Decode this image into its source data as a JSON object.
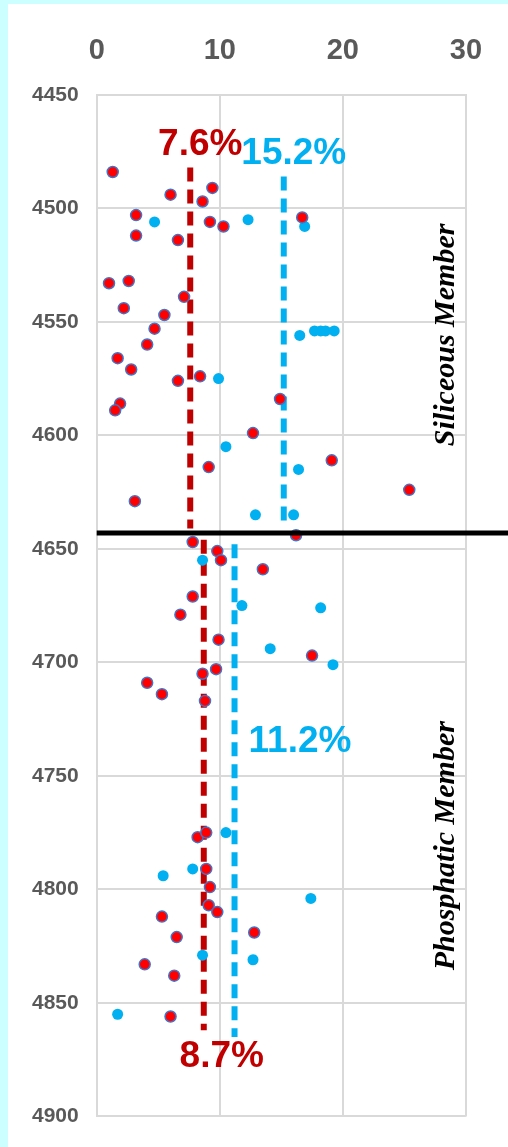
{
  "chart_data": {
    "type": "scatter",
    "xlim": [
      0,
      30
    ],
    "xticks": [
      0,
      10,
      20,
      30
    ],
    "ylim": [
      4900,
      4450
    ],
    "yticks": [
      4450,
      4500,
      4550,
      4600,
      4650,
      4700,
      4750,
      4800,
      4850,
      4900
    ],
    "grid": true,
    "legend": false,
    "marker": "circle",
    "series": [
      {
        "color": "#ff0000",
        "x": [
          1.3,
          6.0,
          9.4,
          8.6,
          3.2,
          9.2,
          10.3,
          3.2,
          6.6,
          16.7,
          1.0,
          2.6,
          2.2,
          5.5,
          4.7,
          4.1,
          1.7,
          2.8,
          6.6,
          8.4,
          1.9,
          1.5,
          7.1,
          12.7,
          19.1,
          9.1,
          3.1,
          25.4,
          14.9,
          16.2,
          7.8,
          9.8,
          10.1,
          13.5,
          7.8,
          6.8,
          9.9,
          17.5,
          9.7,
          8.6,
          4.1,
          5.3,
          8.8,
          8.2,
          8.9,
          8.9,
          9.2,
          9.1,
          9.8,
          5.3,
          12.8,
          6.5,
          3.9,
          6.3,
          6.0
        ],
        "values": [
          4484,
          4494,
          4491,
          4497,
          4503,
          4506,
          4508,
          4512,
          4514,
          4504,
          4533,
          4532,
          4544,
          4547,
          4553,
          4560,
          4566,
          4571,
          4576,
          4574,
          4586,
          4589,
          4539,
          4599,
          4611,
          4614,
          4629,
          4624,
          4584,
          4644,
          4647,
          4651,
          4655,
          4659,
          4671,
          4679,
          4690,
          4697,
          4703,
          4705,
          4709,
          4714,
          4717,
          4777,
          4775,
          4791,
          4799,
          4807,
          4810,
          4812,
          4819,
          4821,
          4833,
          4838,
          4856
        ]
      },
      {
        "color": "#00b0f0",
        "x": [
          4.7,
          12.3,
          16.9,
          16.5,
          17.7,
          18.2,
          18.6,
          19.3,
          9.9,
          10.5,
          16.4,
          12.9,
          16.0,
          8.6,
          11.8,
          18.2,
          14.1,
          19.2,
          10.5,
          7.8,
          5.4,
          17.4,
          8.6,
          12.7,
          1.7
        ],
        "values": [
          4506,
          4505,
          4508,
          4556,
          4554,
          4554,
          4554,
          4554,
          4575,
          4605,
          4615,
          4635,
          4635,
          4655,
          4675,
          4676,
          4694,
          4701,
          4775,
          4791,
          4794,
          4804,
          4829,
          4831,
          4855
        ]
      },
      {
        "type": "line",
        "name": "7.6%",
        "color": "#c00000",
        "line_style": "dashed",
        "marker": "none",
        "x": [
          7.6,
          7.6
        ],
        "values": [
          4482,
          4641
        ]
      },
      {
        "type": "line",
        "name": "15.2%",
        "color": "#00b0f0",
        "line_style": "dashed",
        "marker": "none",
        "x": [
          15.2,
          15.2
        ],
        "values": [
          4486,
          4641
        ]
      },
      {
        "type": "line",
        "name": "8.7%",
        "color": "#c00000",
        "line_style": "dashed",
        "marker": "none",
        "x": [
          8.7,
          8.7
        ],
        "values": [
          4646,
          4862
        ]
      },
      {
        "type": "line",
        "name": "11.2%",
        "color": "#00b0f0",
        "line_style": "dashed",
        "marker": "none",
        "x": [
          11.2,
          11.2
        ],
        "values": [
          4648,
          4865
        ]
      }
    ],
    "ref_lines": [
      {
        "axis": "y",
        "value": 4643,
        "color": "#000000"
      }
    ],
    "annotations": [
      "Siliceous Member",
      "Phosphatic Member"
    ]
  }
}
